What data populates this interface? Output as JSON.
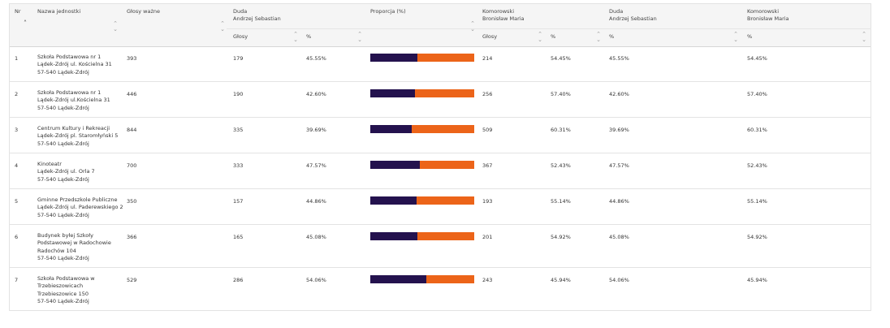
{
  "header": {
    "nr": "Nr",
    "nazwa": "Nazwa jednostki",
    "glosy_wazne": "Głosy ważne",
    "duda_line1": "Duda",
    "duda_line2": "Andrzej Sebastian",
    "proporcja": "Proporcja (%)",
    "komorowski_line1": "Komorowski",
    "komorowski_line2": "Bronisław Maria",
    "duda2_line1": "Duda",
    "duda2_line2": "Andrzej Sebastian",
    "komorowski2_line1": "Komorowski",
    "komorowski2_line2": "Bronisław Maria",
    "sub_glosy": "Głosy",
    "sub_pct": "%"
  },
  "colors": {
    "duda": "#24124e",
    "komorowski": "#ec6419"
  },
  "rows": [
    {
      "nr": "1",
      "name": [
        "Szkoła Podstawowa nr 1",
        "Lądek-Zdrój ul. Kościelna 31",
        "57-540 Lądek-Zdrój"
      ],
      "wazne": "393",
      "duda_glosy": "179",
      "duda_pct": "45.55%",
      "duda_share": 45.55,
      "kom_glosy": "214",
      "kom_pct": "54.45%",
      "duda_pct2": "45.55%",
      "kom_pct2": "54.45%"
    },
    {
      "nr": "2",
      "name": [
        "Szkoła Podstawowa nr 1",
        "Lądek-Zdrój ul.Kościelna 31",
        "57-540 Lądek-Zdrój"
      ],
      "wazne": "446",
      "duda_glosy": "190",
      "duda_pct": "42.60%",
      "duda_share": 42.6,
      "kom_glosy": "256",
      "kom_pct": "57.40%",
      "duda_pct2": "42.60%",
      "kom_pct2": "57.40%"
    },
    {
      "nr": "3",
      "name": [
        "Centrum Kultury i Rekreacji",
        "Lądek-Zdrój pl. Staromłyński 5",
        "57-540 Lądek-Zdrój"
      ],
      "wazne": "844",
      "duda_glosy": "335",
      "duda_pct": "39.69%",
      "duda_share": 39.69,
      "kom_glosy": "509",
      "kom_pct": "60.31%",
      "duda_pct2": "39.69%",
      "kom_pct2": "60.31%"
    },
    {
      "nr": "4",
      "name": [
        "Kinoteatr",
        "Lądek-Zdrój ul. Orla 7",
        "57-540 Lądek-Zdrój"
      ],
      "wazne": "700",
      "duda_glosy": "333",
      "duda_pct": "47.57%",
      "duda_share": 47.57,
      "kom_glosy": "367",
      "kom_pct": "52.43%",
      "duda_pct2": "47.57%",
      "kom_pct2": "52.43%"
    },
    {
      "nr": "5",
      "name": [
        "Gminne Przedszkole Publiczne",
        "Lądek-Zdrój ul. Paderewskiego 2",
        "57-540 Lądek-Zdrój"
      ],
      "wazne": "350",
      "duda_glosy": "157",
      "duda_pct": "44.86%",
      "duda_share": 44.86,
      "kom_glosy": "193",
      "kom_pct": "55.14%",
      "duda_pct2": "44.86%",
      "kom_pct2": "55.14%"
    },
    {
      "nr": "6",
      "name": [
        "Budynek byłej Szkoły",
        "Podstawowej w Radochowie",
        "Radochów 104",
        "57-540 Lądek-Zdrój"
      ],
      "wazne": "366",
      "duda_glosy": "165",
      "duda_pct": "45.08%",
      "duda_share": 45.08,
      "kom_glosy": "201",
      "kom_pct": "54.92%",
      "duda_pct2": "45.08%",
      "kom_pct2": "54.92%"
    },
    {
      "nr": "7",
      "name": [
        "Szkoła Podstawowa w",
        "Trzebieszowicach",
        "Trzebieszowice 150",
        "57-540 Lądek-Zdrój"
      ],
      "wazne": "529",
      "duda_glosy": "286",
      "duda_pct": "54.06%",
      "duda_share": 54.06,
      "kom_glosy": "243",
      "kom_pct": "45.94%",
      "duda_pct2": "54.06%",
      "kom_pct2": "45.94%"
    }
  ]
}
